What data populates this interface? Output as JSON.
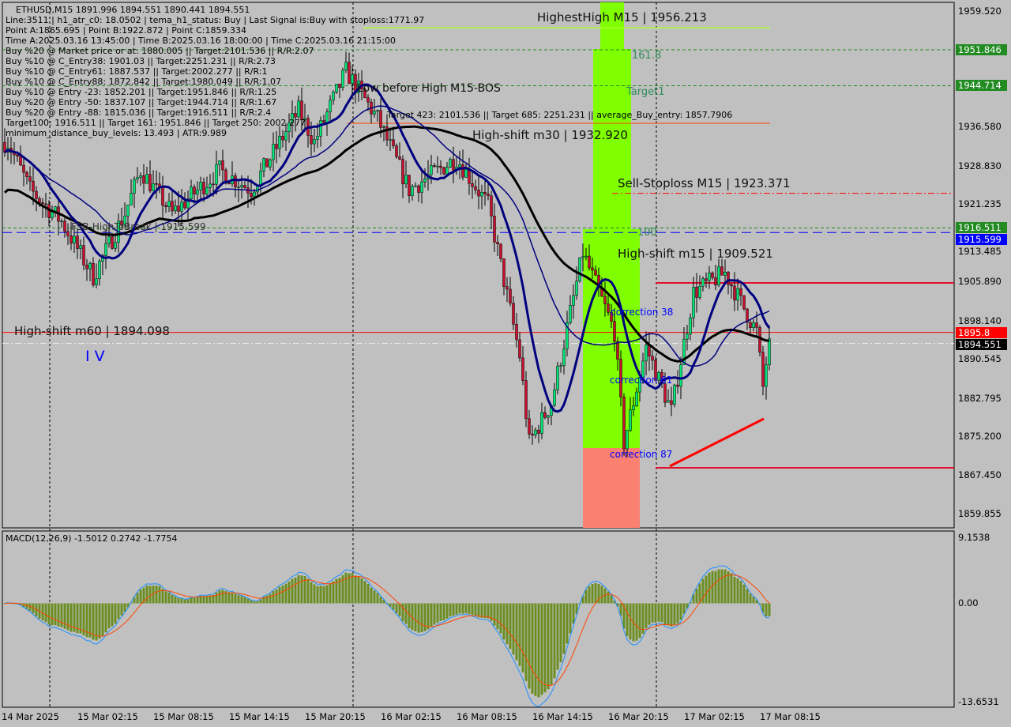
{
  "header": {
    "symbol_line": "ETHUSD,M15  1891.996 1894.551 1890.441 1894.551",
    "info_lines": [
      "Line:3511 | h1_atr_c0: 18.0502 | tema_h1_status: Buy | Last Signal is:Buy with stoploss:1771.97",
      "Point A:1865.695 | Point B:1922.872 | Point C:1859.334",
      "Time A:2025.03.16 13:45:00 | Time B:2025.03.16 18:00:00 | Time C:2025.03.16 21:15:00",
      "Buy %20 @ Market price or at: 1880.005 || Target:2101.536 || R/R:2.07",
      "Buy %10 @ C_Entry38: 1901.03 || Target:2251.231 || R/R:2.73",
      "Buy %10 @ C_Entry61: 1887.537 || Target:2002.277 || R/R:1",
      "Buy %10 @ C_Entry88: 1872.842 || Target:1980.049 || R/R:1.07",
      "Buy %10 @ Entry -23: 1852.201 || Target:1951.846 || R/R:1.25",
      "Buy %20 @ Entry -50: 1837.107 || Target:1944.714 || R/R:1.67",
      "Buy %20 @ Entry -88: 1815.036 || Target:1916.511 || R/R:2.4",
      "Target100: 1916.511 || Target 161: 1951.846 || Target 250: 2002.277",
      "minimum_distance_buy_levels: 13.493 | ATR:9.989"
    ],
    "targets_line": "Target 423: 2101.536 || Target 685: 2251.231 || average_Buy_entry: 1857.7906"
  },
  "labels": {
    "highest_high": "HighestHigh  M15 | 1956.213",
    "low_before_high": "Low before High  M15-BOS",
    "high_shift_m30": "High-shift m30 | 1932.920",
    "sell_stoploss": "Sell-Stoploss M15 | 1923.371",
    "high_shift_m15": "High-shift m15 | 1909.521",
    "high_shift_m60": "High-shift m60 | 1894.098",
    "fsb": "FSB-HighToBreak | 1915.599",
    "wave": "I V",
    "fib_161": "161.8",
    "target1": "Target1",
    "fib_100": "100",
    "correction38": "correction 38",
    "correction61": "correction 61",
    "correction87": "correction 87",
    "macd_title": "MACD(12,26,9) -1.5012 0.2742 -1.7754"
  },
  "colors": {
    "background": "#c0c0c0",
    "bull": "#00e676",
    "bear": "#c8102e",
    "ma_slow": "#000000",
    "ma_fast": "#00007f",
    "zone_green": "#7fff00",
    "zone_red": "#fa8072",
    "macd_hist": "#6b8e23",
    "macd_main": "#1e90ff",
    "macd_signal": "#ff4500"
  },
  "chart_data": {
    "type": "candlestick",
    "symbol": "ETHUSD",
    "timeframe": "M15",
    "ylim": [
      1859.855,
      1959.52
    ],
    "y_ticks": [
      "1959.520",
      "1936.580",
      "1928.830",
      "1921.235",
      "1913.485",
      "1905.890",
      "1898.140",
      "1890.545",
      "1882.795",
      "1875.200",
      "1867.450",
      "1859.855"
    ],
    "price_tags": [
      {
        "value": "1951.846",
        "color": "#228b22"
      },
      {
        "value": "1944.714",
        "color": "#228b22"
      },
      {
        "value": "1916.511",
        "color": "#228b22"
      },
      {
        "value": "1915.599",
        "color": "#0000ff"
      },
      {
        "value": "1895.8",
        "color": "#ff0000"
      },
      {
        "value": "1894.551",
        "color": "#000000"
      }
    ],
    "x_ticks": [
      "14 Mar 2025",
      "15 Mar 02:15",
      "15 Mar 08:15",
      "15 Mar 14:15",
      "15 Mar 20:15",
      "16 Mar 02:15",
      "16 Mar 08:15",
      "16 Mar 14:15",
      "16 Mar 20:15",
      "17 Mar 02:15",
      "17 Mar 08:15"
    ],
    "close_path": [
      [
        "2025-03-14 20:45",
        1933.5
      ],
      [
        "2025-03-14 22:30",
        1924.1
      ],
      [
        "2025-03-15 01:00",
        1917.8
      ],
      [
        "2025-03-15 03:30",
        1906.9
      ],
      [
        "2025-03-15 06:00",
        1919.4
      ],
      [
        "2025-03-15 07:15",
        1928.0
      ],
      [
        "2025-03-15 09:45",
        1919.4
      ],
      [
        "2025-03-15 13:30",
        1928.0
      ],
      [
        "2025-03-15 16:00",
        1924.1
      ],
      [
        "2025-03-15 19:45",
        1939.8
      ],
      [
        "2025-03-15 21:00",
        1933.5
      ],
      [
        "2025-03-15 23:30",
        1947.6
      ],
      [
        "2025-03-16 02:00",
        1938.2
      ],
      [
        "2025-03-16 04:30",
        1924.1
      ],
      [
        "2025-03-16 08:15",
        1930.4
      ],
      [
        "2025-03-16 10:45",
        1921.0
      ],
      [
        "2025-03-16 13:15",
        1891.2
      ],
      [
        "2025-03-16 14:00",
        1873.9
      ],
      [
        "2025-03-16 15:45",
        1881.8
      ],
      [
        "2025-03-16 18:15",
        1911.6
      ],
      [
        "2025-03-16 20:45",
        1895.9
      ],
      [
        "2025-03-16 21:30",
        1873.9
      ],
      [
        "2025-03-16 23:15",
        1892.8
      ],
      [
        "2025-03-17 01:15",
        1880.2
      ],
      [
        "2025-03-17 03:00",
        1903.7
      ],
      [
        "2025-03-17 05:30",
        1907.6
      ],
      [
        "2025-03-17 08:00",
        1895.9
      ],
      [
        "2025-03-17 08:30",
        1884.9
      ],
      [
        "2025-03-17 09:00",
        1894.551
      ]
    ],
    "levels": [
      {
        "name": "HighestHigh M15",
        "value": 1956.213
      },
      {
        "name": "161.8",
        "value": 1951.846
      },
      {
        "name": "Target1",
        "value": 1944.714
      },
      {
        "name": "Sell-Stoploss M15",
        "value": 1923.371
      },
      {
        "name": "100",
        "value": 1916.511
      },
      {
        "name": "FSB-HighToBreak",
        "value": 1915.599
      },
      {
        "name": "High-shift m15",
        "value": 1909.521
      },
      {
        "name": "High-shift m60",
        "value": 1894.098
      }
    ],
    "macd": {
      "params": "12,26,9",
      "values": [
        -1.5012,
        0.2742,
        -1.7754
      ],
      "ylim": [
        -13.6531,
        9.1538
      ],
      "y_ticks": [
        "9.1538",
        "0.00",
        "-13.6531"
      ]
    }
  }
}
